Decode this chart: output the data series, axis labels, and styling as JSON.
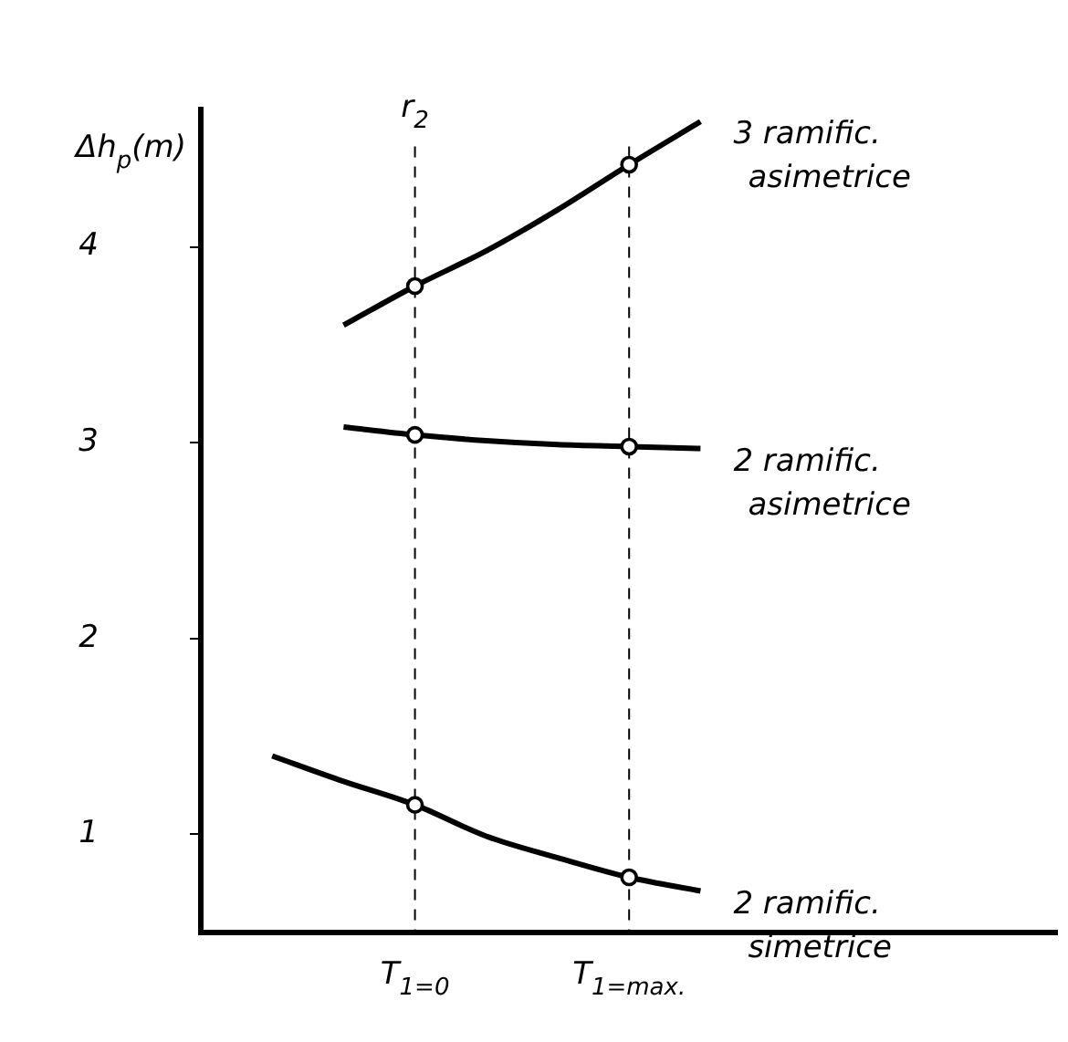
{
  "chart_data": {
    "type": "line",
    "ylabel": "Δh$_{p}$(m)",
    "categories": [
      null,
      null,
      null,
      "T$_{1=0}$",
      null,
      null,
      "T$_{1=max.}$",
      null,
      null,
      null,
      null,
      null,
      null
    ],
    "ylim": [
      0.5,
      4.7
    ],
    "yticks": [
      1,
      2,
      3,
      4
    ],
    "grid": false,
    "legend": false,
    "marker": "none",
    "line_style": "solid",
    "ref_lines": [
      {
        "axis": "x",
        "value": "T$_{1=0}$",
        "label": "r$_{2}$",
        "line_style": "dashed",
        "color": "#000000"
      },
      {
        "axis": "x",
        "value": "T$_{1=max.}$",
        "line_style": "dashed",
        "color": "#000000"
      }
    ],
    "series": [
      {
        "name": "3 ramific. asimetrice",
        "color": "#000000",
        "values": [
          null,
          null,
          3.6,
          3.8,
          3.98,
          4.19,
          4.42,
          4.64,
          null,
          null,
          null,
          null,
          null
        ]
      },
      {
        "name": "2 ramific. asimetrice",
        "color": "#000000",
        "values": [
          null,
          null,
          3.08,
          3.04,
          3.01,
          2.99,
          2.98,
          2.97,
          null,
          null,
          null,
          null,
          null
        ]
      },
      {
        "name": "2 ramific. simetrice",
        "color": "#000000",
        "values": [
          null,
          1.4,
          1.27,
          1.15,
          0.99,
          0.88,
          0.78,
          0.71,
          null,
          null,
          null,
          null,
          null
        ]
      },
      {
        "type": "scatter",
        "marker": "circle",
        "color": "#000000",
        "values": [
          null,
          null,
          null,
          3.8,
          null,
          null,
          4.42,
          null,
          null,
          null,
          null,
          null,
          null
        ]
      },
      {
        "type": "scatter",
        "marker": "circle",
        "color": "#000000",
        "values": [
          null,
          null,
          null,
          3.04,
          null,
          null,
          2.98,
          null,
          null,
          null,
          null,
          null,
          null
        ]
      },
      {
        "type": "scatter",
        "marker": "circle",
        "color": "#000000",
        "values": [
          null,
          null,
          null,
          1.15,
          null,
          null,
          0.78,
          null,
          null,
          null,
          null,
          null,
          null
        ]
      }
    ]
  }
}
